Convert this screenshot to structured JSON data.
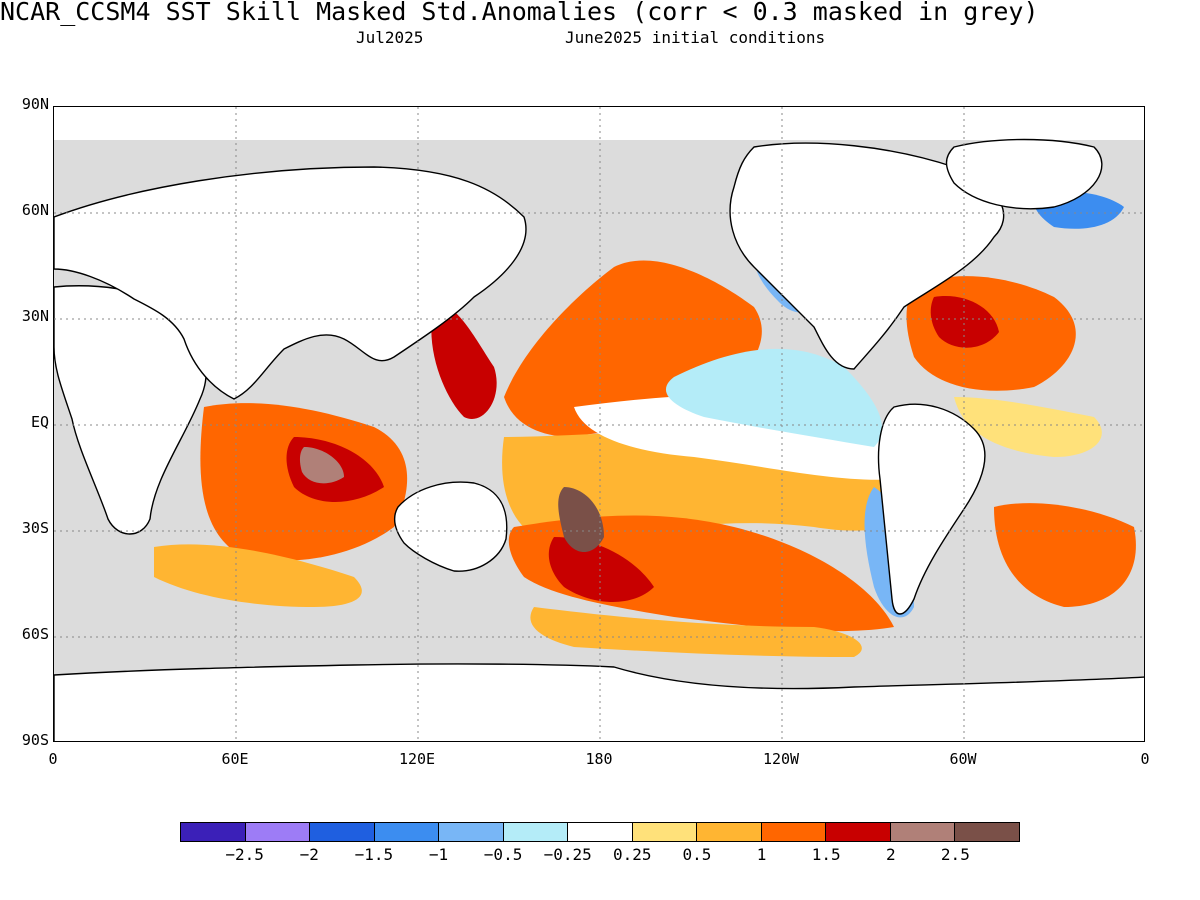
{
  "header": {
    "title": "NCAR_CCSM4  SST Skill Masked Std.Anomalies (corr < 0.3 masked in grey)",
    "valid_month": "Jul2025",
    "initial_conditions": "June2025 initial conditions"
  },
  "map": {
    "projection": "equirectangular",
    "lon_range": [
      0,
      360
    ],
    "lat_range": [
      -90,
      90
    ],
    "lat_ticks": [
      "90N",
      "60N",
      "30N",
      "EQ",
      "30S",
      "60S",
      "90S"
    ],
    "lon_ticks": [
      "0",
      "60E",
      "120E",
      "180",
      "120W",
      "60W",
      "0"
    ],
    "mask_color": "#dcdcdc",
    "land_color": "#ffffff",
    "grid": "dotted"
  },
  "colorbar": {
    "colors": [
      "#3b20b8",
      "#9d7cf6",
      "#1f5fe0",
      "#3c8df0",
      "#78b6f6",
      "#b4ecf8",
      "#ffffff",
      "#ffe17a",
      "#ffb532",
      "#ff6600",
      "#c80000",
      "#b08078",
      "#7a5048"
    ],
    "labels": [
      "-2.5",
      "-2",
      "-1.5",
      "-1",
      "-0.5",
      "-0.25",
      "0.25",
      "0.5",
      "1",
      "1.5",
      "2",
      "2.5"
    ]
  }
}
